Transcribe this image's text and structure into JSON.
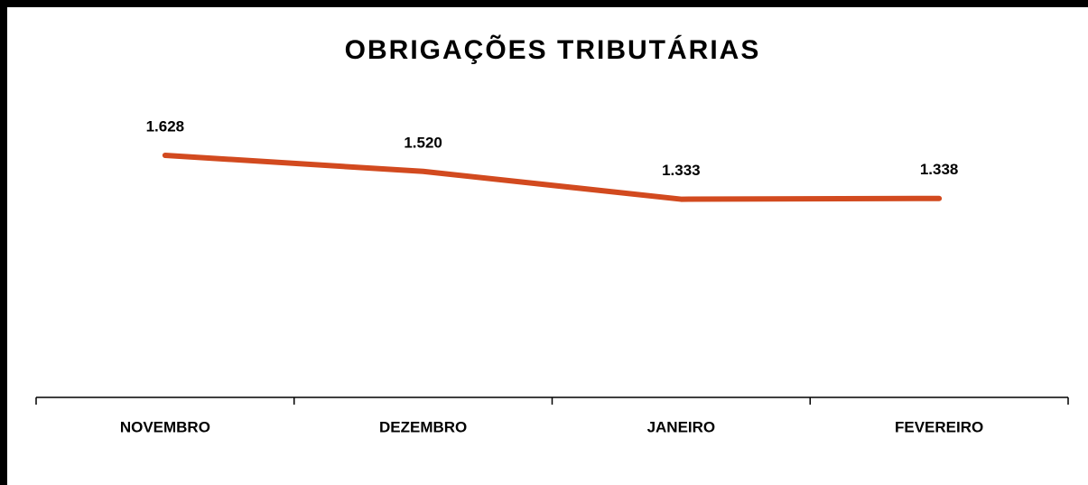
{
  "chart_data": {
    "type": "line",
    "title": "OBRIGAÇÕES TRIBUTÁRIAS",
    "categories": [
      "NOVEMBRO",
      "DEZEMBRO",
      "JANEIRO",
      "FEVEREIRO"
    ],
    "values": [
      1628,
      1520,
      1333,
      1338
    ],
    "value_labels": [
      "1.628",
      "1.520",
      "1.333",
      "1.338"
    ],
    "color": "#d24a1f"
  }
}
